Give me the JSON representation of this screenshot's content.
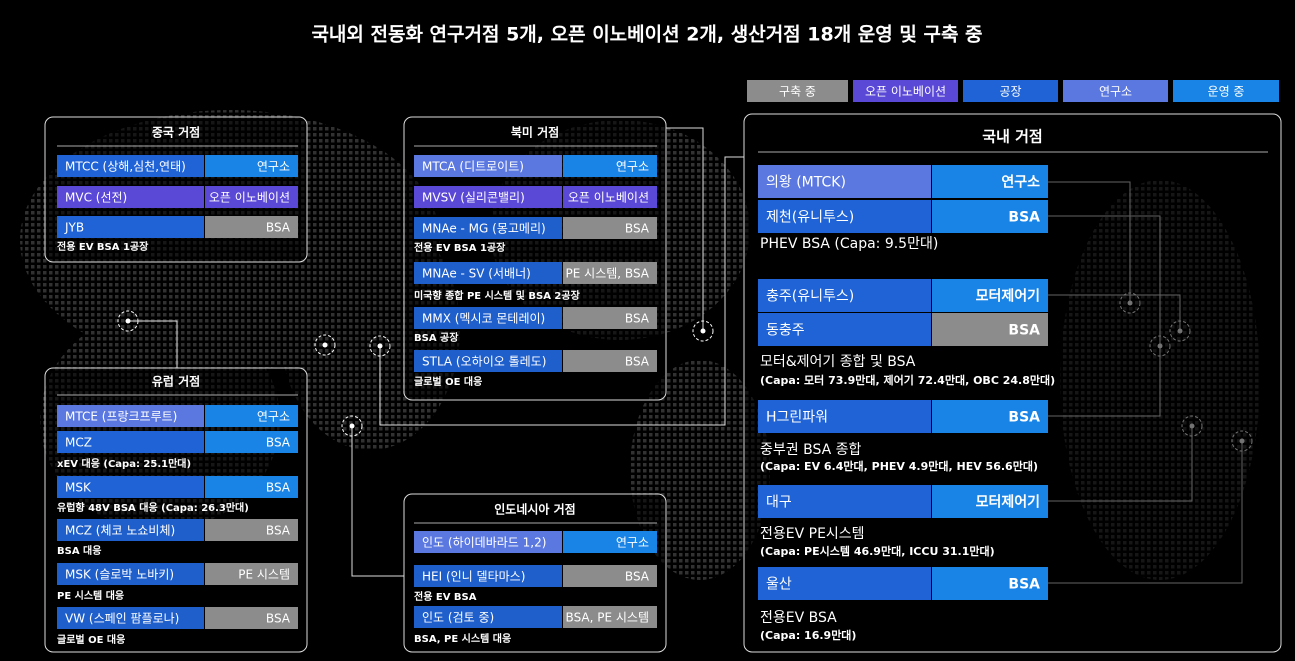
{
  "title": "국내외 전동화 연구거점 5개, 오픈 이노베이션 2개, 생산거점 18개 운영 및 구축 중",
  "legend": [
    "구축 중",
    "오픈 이노베이션",
    "공장",
    "연구소",
    "운영 중"
  ],
  "panels": [
    {
      "title": "중국 거점",
      "groups": [
        {
          "rows": [
            {
              "name": "MTCC (상해,심천,연태)",
              "type": "연구소"
            },
            {
              "name": "MVC (선전)",
              "type": "오픈 이노베이션"
            },
            {
              "name": "JYB",
              "type": "BSA"
            }
          ],
          "note": "전용 EV BSA 1공장"
        }
      ]
    },
    {
      "title": "유럽 거점",
      "groups": [
        {
          "rows": [
            {
              "name": "MTCE (프랑크프루트)",
              "type": "연구소"
            },
            {
              "name": "MCZ",
              "type": "BSA"
            }
          ],
          "note": "xEV 대응 (Capa: 25.1만대)"
        },
        {
          "rows": [
            {
              "name": "MSK",
              "type": "BSA"
            }
          ],
          "note": "유럽향 48V BSA 대응 (Capa: 26.3만대)"
        },
        {
          "rows": [
            {
              "name": "MCZ (체코 노쇼비체)",
              "type": "BSA"
            }
          ],
          "note": "BSA 대응"
        },
        {
          "rows": [
            {
              "name": "MSK (슬로박 노바키)",
              "type": "PE 시스템"
            }
          ],
          "note": "PE 시스템 대응"
        },
        {
          "rows": [
            {
              "name": "VW (스페인 팜플로나)",
              "type": "BSA"
            }
          ],
          "note": "글로벌 OE 대응"
        }
      ]
    },
    {
      "title": "북미 거점",
      "groups": [
        {
          "rows": [
            {
              "name": "MTCA (디트로이트)",
              "type": "연구소"
            },
            {
              "name": "MVSV (실리콘밸리)",
              "type": "오픈 이노베이션"
            }
          ]
        },
        {
          "rows": [
            {
              "name": "MNAe - MG (몽고메리)",
              "type": "BSA"
            }
          ],
          "note": "전용 EV BSA 1공장"
        },
        {
          "rows": [
            {
              "name": "MNAe - SV (서배너)",
              "type": "PE 시스템, BSA"
            }
          ],
          "note": "미국향 종합 PE 시스템 및 BSA 2공장"
        },
        {
          "rows": [
            {
              "name": "MMX (멕시코 몬테레이)",
              "type": "BSA"
            }
          ],
          "note": "BSA 공장"
        },
        {
          "rows": [
            {
              "name": "STLA (오하이오 톨레도)",
              "type": "BSA"
            }
          ],
          "note": "글로벌 OE 대응"
        }
      ]
    },
    {
      "title": "인도네시아 거점",
      "groups": [
        {
          "rows": [
            {
              "name": "인도 (하이데바라드 1,2)",
              "type": "연구소"
            }
          ]
        },
        {
          "rows": [
            {
              "name": "HEI (인니 델타마스)",
              "type": "BSA"
            }
          ],
          "note": "전용 EV BSA"
        },
        {
          "rows": [
            {
              "name": "인도 (검토 중)",
              "type": "BSA, PE 시스템"
            }
          ],
          "note": "BSA, PE 시스템 대응"
        }
      ]
    },
    {
      "title": "국내 거점",
      "groups": [
        {
          "rows": [
            {
              "name": "의왕 (MTCK)",
              "type": "연구소"
            },
            {
              "name": "제천(유니투스)",
              "type": "BSA"
            }
          ],
          "note": "PHEV BSA  (Capa: 9.5만대)"
        },
        {
          "rows": [
            {
              "name": "충주(유니투스)",
              "type": "모터제어기"
            },
            {
              "name": "동충주",
              "type": "BSA"
            }
          ],
          "note": "모터&제어기 종합 및 BSA",
          "subnote": "(Capa: 모터 73.9만대, 제어기 72.4만대, OBC 24.8만대)"
        },
        {
          "rows": [
            {
              "name": "H그린파워",
              "type": "BSA"
            }
          ],
          "note": "중부권 BSA 종합",
          "subnote": "(Capa: EV 6.4만대, PHEV 4.9만대, HEV 56.6만대)"
        },
        {
          "rows": [
            {
              "name": "대구",
              "type": "모터제어기"
            }
          ],
          "note": "전용EV PE시스템",
          "subnote": "(Capa: PE시스템 46.9만대, ICCU 31.1만대)"
        },
        {
          "rows": [
            {
              "name": "울산",
              "type": "BSA"
            }
          ],
          "note": "전용EV BSA",
          "subnote": "(Capa: 16.9만대)"
        }
      ]
    }
  ]
}
